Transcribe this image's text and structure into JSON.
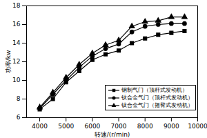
{
  "chart_data": {
    "type": "line",
    "x": [
      4000,
      4500,
      5000,
      5500,
      6000,
      6500,
      7000,
      7500,
      8000,
      8500,
      9000,
      9500
    ],
    "series": [
      {
        "name": "钢制气门（顶杆式发动机）",
        "color": "#000000",
        "marker": "square",
        "values": [
          6.9,
          8.0,
          9.8,
          11.0,
          12.2,
          12.8,
          13.2,
          14.0,
          14.5,
          14.9,
          15.1,
          15.3
        ]
      },
      {
        "name": "钛合金气门（顶杆式发动机）",
        "color": "#000000",
        "marker": "circle",
        "values": [
          7.0,
          8.5,
          10.0,
          11.4,
          12.6,
          13.4,
          13.9,
          15.2,
          15.8,
          16.0,
          16.1,
          16.1
        ]
      },
      {
        "name": "钛合金气门（摇臂式发动机）",
        "color": "#000000",
        "marker": "triangle",
        "values": [
          7.1,
          8.7,
          10.3,
          11.7,
          12.9,
          13.8,
          14.3,
          15.8,
          16.3,
          16.4,
          16.8,
          16.8
        ]
      }
    ],
    "x_label": "转速/(r/min)",
    "y_label": "功率/kw",
    "xlim": [
      3500,
      10000
    ],
    "xticks": [
      4000,
      5000,
      6000,
      7000,
      8000,
      9000,
      10000
    ],
    "ylim": [
      6,
      18
    ],
    "yticks": [
      6,
      8,
      10,
      12,
      14,
      16,
      18
    ],
    "grid": false,
    "legend": "lower right"
  }
}
